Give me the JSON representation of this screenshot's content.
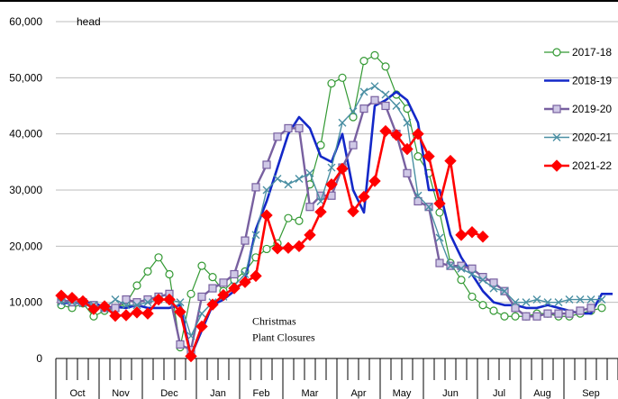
{
  "chart_data": {
    "type": "line",
    "ylabel": "head",
    "ylim": [
      0,
      60000
    ],
    "yticks": [
      0,
      10000,
      20000,
      30000,
      40000,
      50000,
      60000
    ],
    "ytick_labels": [
      "0",
      "10,000",
      "20,000",
      "30,000",
      "40,000",
      "50,000",
      "60,000"
    ],
    "grid": "horizontal",
    "legend": "right",
    "week_count": 52,
    "months": [
      {
        "label": "Oct",
        "start": 0,
        "end": 4
      },
      {
        "label": "Nov",
        "start": 4,
        "end": 8
      },
      {
        "label": "Dec",
        "start": 8,
        "end": 13
      },
      {
        "label": "Jan",
        "start": 13,
        "end": 17
      },
      {
        "label": "Feb",
        "start": 17,
        "end": 21
      },
      {
        "label": "Mar",
        "start": 21,
        "end": 26
      },
      {
        "label": "Apr",
        "start": 26,
        "end": 30
      },
      {
        "label": "May",
        "start": 30,
        "end": 34
      },
      {
        "label": "Jun",
        "start": 34,
        "end": 39
      },
      {
        "label": "Jul",
        "start": 39,
        "end": 43
      },
      {
        "label": "Aug",
        "start": 43,
        "end": 47
      },
      {
        "label": "Sep",
        "start": 47,
        "end": 52
      }
    ],
    "annotation": {
      "lines": [
        "Christmas",
        "Plant Closures"
      ],
      "week": 14,
      "value": 6000
    },
    "series": [
      {
        "name": "2017-18",
        "color": "#339933",
        "marker": "circle",
        "values": [
          9500,
          9000,
          9800,
          7500,
          8500,
          9000,
          9800,
          13000,
          15500,
          18000,
          15000,
          2000,
          11500,
          16500,
          14500,
          12000,
          14000,
          15500,
          18000,
          19500,
          20500,
          25000,
          24500,
          31000,
          38000,
          49000,
          50000,
          43000,
          53000,
          54000,
          52000,
          47000,
          44500,
          36000,
          33000,
          26000,
          17000,
          14000,
          11000,
          9500,
          8500,
          7500,
          7500,
          7500,
          8000,
          8000,
          7500,
          7500,
          8000,
          8500,
          9000
        ]
      },
      {
        "name": "2018-19",
        "color": "#1428c8",
        "marker": "none",
        "values": [
          9800,
          10000,
          9800,
          10000,
          9000,
          9200,
          9000,
          9500,
          9000,
          9000,
          9000,
          9500,
          500,
          5000,
          9500,
          10500,
          12000,
          14000,
          23000,
          28000,
          34000,
          40000,
          43000,
          41000,
          36000,
          35000,
          40000,
          30000,
          26000,
          45000,
          46000,
          47500,
          46000,
          42000,
          30000,
          30000,
          22000,
          18000,
          15000,
          12000,
          10000,
          9500,
          9500,
          9000,
          9000,
          9500,
          9000,
          8500,
          8000,
          8000,
          11500,
          11500
        ]
      },
      {
        "name": "2019-20",
        "color": "#7860a0",
        "marker": "square",
        "values": [
          10500,
          10000,
          10000,
          9500,
          9000,
          9000,
          10500,
          10000,
          10500,
          11000,
          11500,
          2500,
          1500,
          11000,
          12500,
          13500,
          15000,
          21000,
          30500,
          34500,
          39500,
          41000,
          41000,
          27000,
          29000,
          29000,
          34000,
          38000,
          44500,
          46000,
          45000,
          40000,
          33000,
          28000,
          27000,
          17000,
          16500,
          16500,
          16000,
          14500,
          13500,
          12000,
          9000,
          7500,
          7500,
          8000,
          8000,
          8000,
          8500,
          9000
        ]
      },
      {
        "name": "2020-21",
        "color": "#4a8fa3",
        "marker": "x",
        "values": [
          10000,
          10000,
          9800,
          9500,
          9000,
          10500,
          9500,
          9500,
          10000,
          10500,
          10500,
          10000,
          4000,
          8000,
          10000,
          11000,
          13000,
          15000,
          22000,
          30000,
          32000,
          31000,
          32000,
          33000,
          28000,
          34000,
          42000,
          44000,
          47500,
          48500,
          47000,
          45000,
          42000,
          29000,
          27000,
          21500,
          16500,
          16000,
          15000,
          14000,
          12500,
          12000,
          10000,
          10000,
          10500,
          10000,
          10000,
          10500,
          10500,
          10500,
          10500
        ]
      },
      {
        "name": "2021-22",
        "color": "#ff0000",
        "marker": "diamond",
        "values": [
          11200,
          10800,
          10200,
          8800,
          9300,
          7600,
          7700,
          8200,
          8000,
          10500,
          10500,
          8300,
          400,
          5700,
          9600,
          11300,
          12500,
          13600,
          14700,
          25500,
          19600,
          19700,
          20000,
          22000,
          26100,
          31000,
          33800,
          26200,
          28800,
          31600,
          40500,
          39800,
          37300,
          40000,
          36000,
          27600,
          35200,
          22000,
          22500,
          21700
        ]
      }
    ]
  }
}
